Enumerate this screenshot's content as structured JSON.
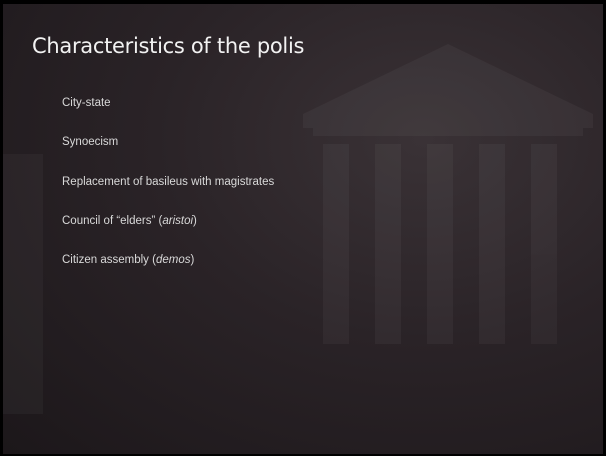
{
  "title": "Characteristics of the polis",
  "bullets": [
    [
      {
        "text": "City-state"
      }
    ],
    [
      {
        "text": "Synoecism"
      }
    ],
    [
      {
        "text": "Replacement of basileus with magistrates"
      }
    ],
    [
      {
        "text": "Council of “elders” ("
      },
      {
        "text": "aristoi",
        "italic": true
      },
      {
        "text": ")"
      }
    ],
    [
      {
        "text": "Citizen assembly ("
      },
      {
        "text": "demos",
        "italic": true
      },
      {
        "text": ")"
      }
    ]
  ]
}
